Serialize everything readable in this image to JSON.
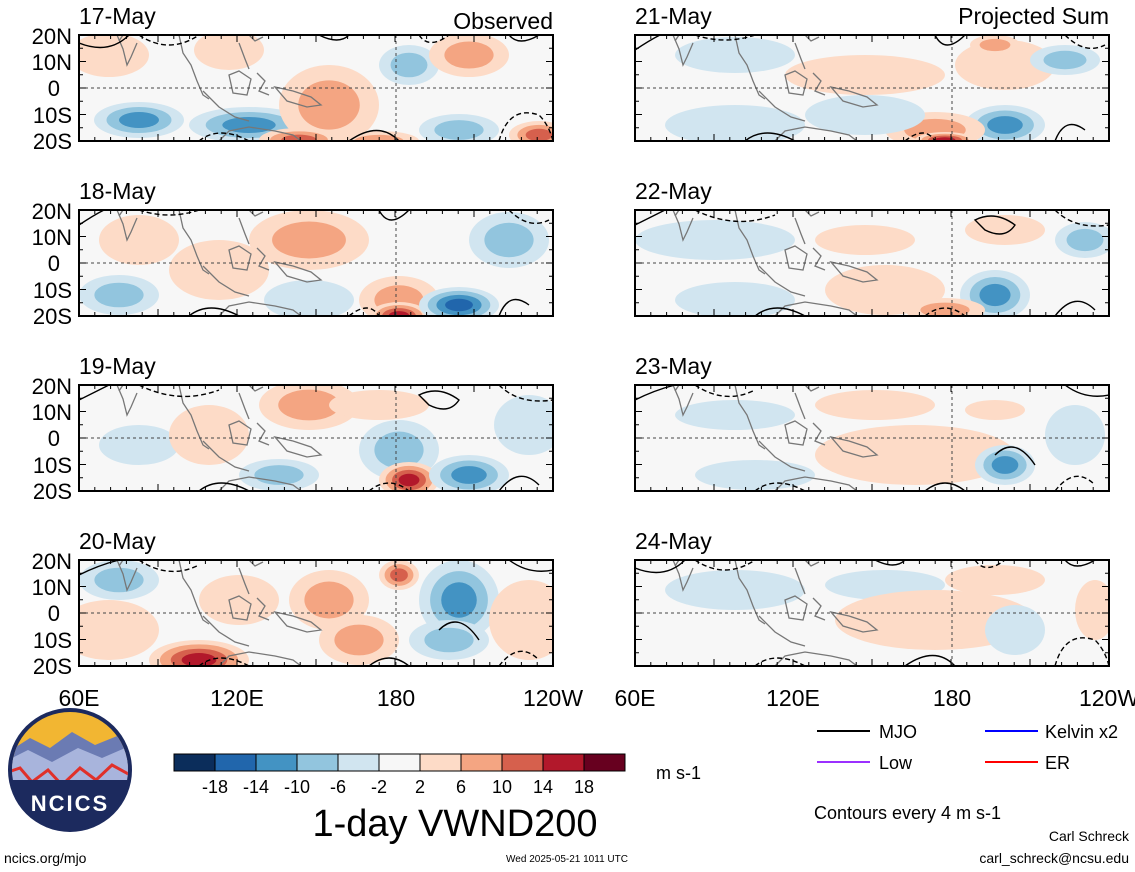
{
  "figure": {
    "title": "1-day VWND200",
    "footer_left": "ncics.org/mjo",
    "footer_center": "Wed 2025-05-21 1011 UTC",
    "author": "Carl Schreck",
    "email": "carl_schreck@ncsu.edu",
    "logo_text": "NCICS"
  },
  "columns": {
    "left_header": "Observed",
    "right_header": "Projected Sum"
  },
  "panels_left": [
    {
      "date": "17-May"
    },
    {
      "date": "18-May"
    },
    {
      "date": "19-May"
    },
    {
      "date": "20-May"
    }
  ],
  "panels_right": [
    {
      "date": "21-May"
    },
    {
      "date": "22-May"
    },
    {
      "date": "23-May"
    },
    {
      "date": "24-May"
    }
  ],
  "axes": {
    "lat_labels": [
      "20N",
      "10N",
      "0",
      "10S",
      "20S"
    ],
    "lon_labels": [
      "60E",
      "120E",
      "180",
      "120W"
    ]
  },
  "colorbar": {
    "ticks": [
      "-18",
      "-14",
      "-10",
      "-6",
      "-2",
      "2",
      "6",
      "10",
      "14",
      "18"
    ],
    "colors": [
      "#0b2d5b",
      "#2166ac",
      "#4393c3",
      "#92c5de",
      "#d1e5f0",
      "#f7f7f7",
      "#fddbc7",
      "#f4a582",
      "#d6604d",
      "#b2182b",
      "#67001f"
    ],
    "units": "m s-1"
  },
  "legend": {
    "items": [
      {
        "label": "MJO",
        "color": "#000000"
      },
      {
        "label": "Kelvin x2",
        "color": "#0000ff"
      },
      {
        "label": "Low",
        "color": "#9b30ff"
      },
      {
        "label": "ER",
        "color": "#ff0000"
      }
    ],
    "contour_note": "Contours every 4 m s-1"
  }
}
